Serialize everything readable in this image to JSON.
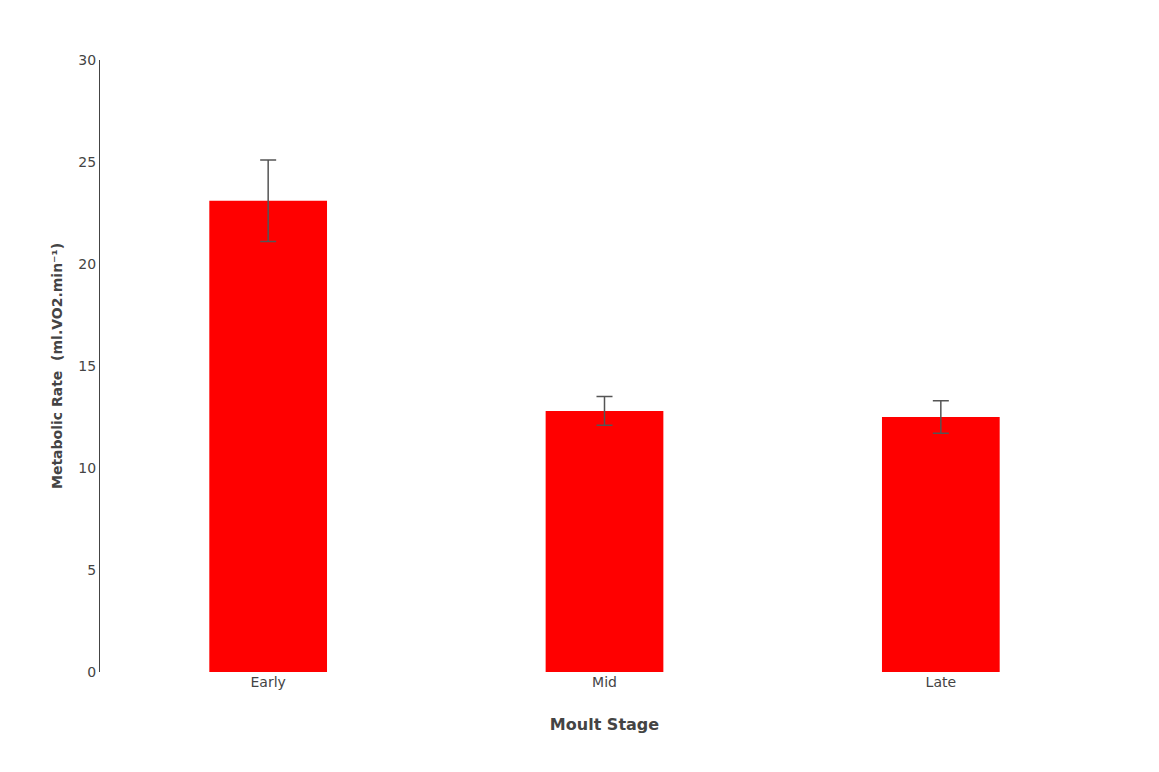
{
  "chart_data": {
    "type": "bar",
    "categories": [
      "Early",
      "Mid",
      "Late"
    ],
    "values": [
      23.1,
      12.8,
      12.5
    ],
    "errors": [
      2.0,
      0.7,
      0.8
    ],
    "color": "#ff0000",
    "xlabel": "Moult Stage",
    "ylabel": "Metabolic Rate  (ml.VO2.min⁻¹)",
    "ylim": [
      0,
      30
    ],
    "yticks": [
      0,
      5,
      10,
      15,
      20,
      25,
      30
    ],
    "grid": false
  }
}
